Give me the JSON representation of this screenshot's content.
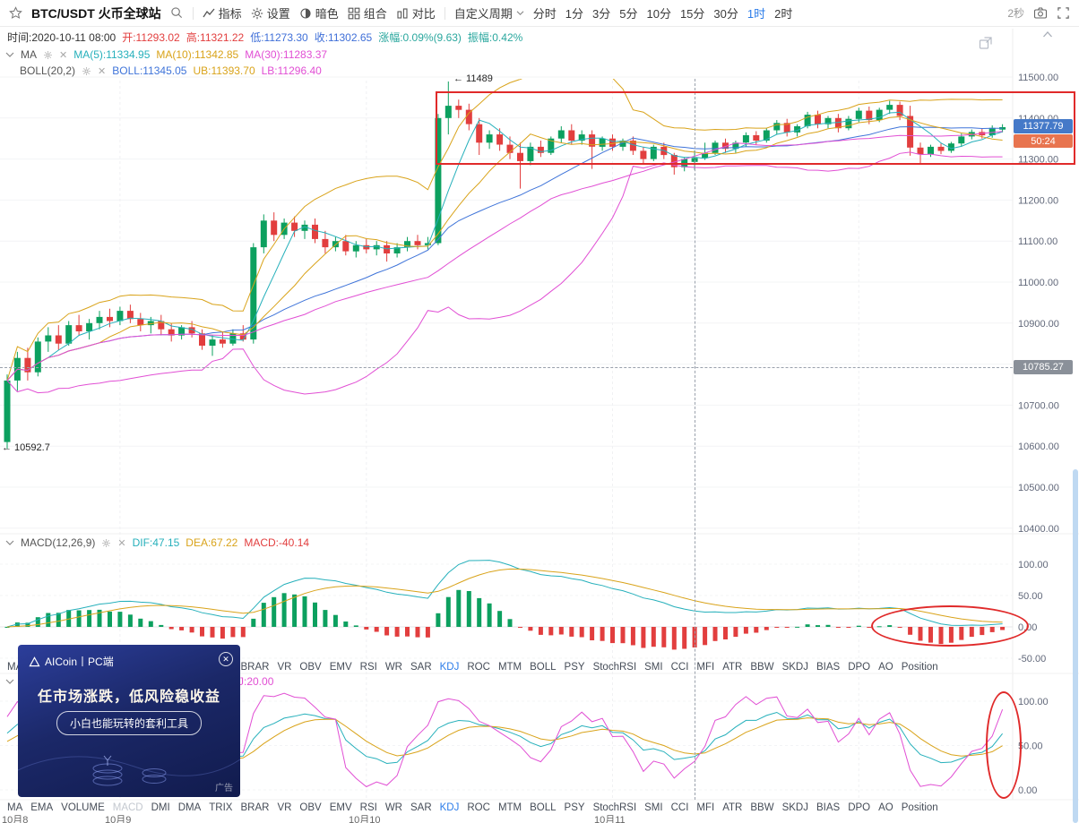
{
  "toolbar": {
    "symbol": "BTC/USDT 火币全球站",
    "menu": [
      "指标",
      "设置",
      "暗色",
      "组合",
      "对比"
    ],
    "custom_period_label": "自定义周期",
    "periods": [
      "分时",
      "1分",
      "3分",
      "5分",
      "10分",
      "15分",
      "30分",
      "1时",
      "2时"
    ],
    "active_period": "1时",
    "refresh_interval": "2秒"
  },
  "info_bar": {
    "time": "时间:2020-10-11 08:00",
    "open": "开:11293.02",
    "high": "高:11321.22",
    "low": "低:11273.30",
    "close": "收:11302.65",
    "change": "涨幅:0.09%(9.63)",
    "amplitude": "振幅:0.42%"
  },
  "indicator_rows": {
    "ma": {
      "label": "MA",
      "ma5": "MA(5):11334.95",
      "ma10": "MA(10):11342.85",
      "ma30": "MA(30):11283.37"
    },
    "boll": {
      "label": "BOLL(20,2)",
      "mid": "BOLL:11345.05",
      "ub": "UB:11393.70",
      "lb": "LB:11296.40"
    },
    "macd": {
      "label": "MACD(12,26,9)",
      "dif": "DIF:47.15",
      "dea": "DEA:67.22",
      "macd": "MACD:-40.14"
    },
    "kdj": {
      "label": "KDJ(9,3,3)",
      "j_value": "J:20.00"
    }
  },
  "annotations": {
    "high_marker": "← 11489",
    "low_marker": "← 10592.7",
    "last_price": "11377.79",
    "countdown": "50:24",
    "crosshair_price": "10785.27"
  },
  "tabs": {
    "items": [
      "MA",
      "EMA",
      "VOLUME",
      "MACD",
      "DMI",
      "DMA",
      "TRIX",
      "BRAR",
      "VR",
      "OBV",
      "EMV",
      "RSI",
      "WR",
      "SAR",
      "KDJ",
      "ROC",
      "MTM",
      "BOLL",
      "PSY",
      "StochRSI",
      "SMI",
      "CCI",
      "MFI",
      "ATR",
      "BBW",
      "SKDJ",
      "BIAS",
      "DPO",
      "AO",
      "Position"
    ],
    "active": "KDJ",
    "muted": "MACD"
  },
  "x_axis_labels": [
    "10月8",
    "10月9",
    "10月10",
    "10月11"
  ],
  "ad": {
    "brand": "AICoin丨PC端",
    "headline": "任市场涨跌，低风险稳收益",
    "button_label": "小白也能玩转的套利工具",
    "tag": "广告"
  },
  "colors": {
    "up": "#0CA05F",
    "down": "#E23E3E",
    "ma5": "#26B0BB",
    "ma10": "#D9A31A",
    "ma30": "#E14FD4",
    "boll_mid": "#3F74D9",
    "accent": "#2B7CE9",
    "badge_price_bg": "#4579C8",
    "badge_countdown_bg": "#E8744F",
    "badge_cross_bg": "#8A9099",
    "annotation_red": "#E02A2A"
  },
  "chart_data": {
    "type": "candlestick",
    "title": "BTC/USDT 1时 K线 (火币全球站)",
    "main_panel": {
      "y_ticks": [
        "11500.00",
        "11400.00",
        "11300.00",
        "11200.00",
        "11100.00",
        "11000.00",
        "10900.00",
        "10800.00",
        "10700.00",
        "10600.00",
        "10500.00",
        "10400.00"
      ],
      "overlays": [
        "MA5",
        "MA10",
        "MA30",
        "BOLL(20,2)"
      ],
      "candles_ohlc": [
        [
          10610,
          10775,
          10592.7,
          10760
        ],
        [
          10760,
          10830,
          10735,
          10815
        ],
        [
          10815,
          10840,
          10760,
          10780
        ],
        [
          10780,
          10865,
          10770,
          10855
        ],
        [
          10855,
          10890,
          10830,
          10870
        ],
        [
          10870,
          10895,
          10835,
          10850
        ],
        [
          10850,
          10905,
          10845,
          10895
        ],
        [
          10895,
          10920,
          10870,
          10880
        ],
        [
          10880,
          10910,
          10860,
          10900
        ],
        [
          10900,
          10930,
          10885,
          10915
        ],
        [
          10915,
          10935,
          10890,
          10905
        ],
        [
          10905,
          10940,
          10895,
          10930
        ],
        [
          10930,
          10945,
          10900,
          10910
        ],
        [
          10910,
          10925,
          10880,
          10895
        ],
        [
          10895,
          10915,
          10875,
          10905
        ],
        [
          10905,
          10920,
          10870,
          10885
        ],
        [
          10885,
          10900,
          10855,
          10870
        ],
        [
          10870,
          10895,
          10860,
          10890
        ],
        [
          10890,
          10905,
          10865,
          10875
        ],
        [
          10875,
          10885,
          10835,
          10845
        ],
        [
          10845,
          10870,
          10820,
          10860
        ],
        [
          10860,
          10880,
          10840,
          10850
        ],
        [
          10850,
          10885,
          10845,
          10875
        ],
        [
          10875,
          10895,
          10855,
          10860
        ],
        [
          10860,
          11095,
          10850,
          11085
        ],
        [
          11085,
          11165,
          11070,
          11150
        ],
        [
          11150,
          11170,
          11100,
          11115
        ],
        [
          11115,
          11155,
          11105,
          11145
        ],
        [
          11145,
          11160,
          11110,
          11125
        ],
        [
          11125,
          11150,
          11105,
          11140
        ],
        [
          11140,
          11155,
          11095,
          11105
        ],
        [
          11105,
          11125,
          11070,
          11085
        ],
        [
          11085,
          11110,
          11075,
          11100
        ],
        [
          11100,
          11115,
          11065,
          11075
        ],
        [
          11075,
          11100,
          11060,
          11090
        ],
        [
          11090,
          11105,
          11070,
          11080
        ],
        [
          11080,
          11100,
          11065,
          11090
        ],
        [
          11090,
          11100,
          11050,
          11070
        ],
        [
          11070,
          11095,
          11060,
          11085
        ],
        [
          11085,
          11110,
          11075,
          11100
        ],
        [
          11100,
          11115,
          11080,
          11090
        ],
        [
          11090,
          11110,
          11080,
          11095
        ],
        [
          11095,
          11410,
          11090,
          11400
        ],
        [
          11400,
          11489,
          11360,
          11430
        ],
        [
          11430,
          11445,
          11400,
          11420
        ],
        [
          11420,
          11435,
          11370,
          11385
        ],
        [
          11385,
          11400,
          11310,
          11340
        ],
        [
          11340,
          11370,
          11325,
          11360
        ],
        [
          11360,
          11375,
          11320,
          11335
        ],
        [
          11335,
          11355,
          11300,
          11315
        ],
        [
          11315,
          11340,
          11228,
          11295
        ],
        [
          11295,
          11340,
          11285,
          11330
        ],
        [
          11330,
          11345,
          11305,
          11315
        ],
        [
          11315,
          11355,
          11310,
          11350
        ],
        [
          11350,
          11380,
          11340,
          11370
        ],
        [
          11370,
          11385,
          11335,
          11345
        ],
        [
          11345,
          11370,
          11335,
          11360
        ],
        [
          11360,
          11370,
          11276,
          11330
        ],
        [
          11330,
          11355,
          11320,
          11350
        ],
        [
          11350,
          11360,
          11320,
          11330
        ],
        [
          11330,
          11350,
          11320,
          11345
        ],
        [
          11345,
          11355,
          11310,
          11320
        ],
        [
          11320,
          11330,
          11290,
          11300
        ],
        [
          11300,
          11335,
          11295,
          11330
        ],
        [
          11330,
          11340,
          11300,
          11310
        ],
        [
          11310,
          11315,
          11262,
          11280
        ],
        [
          11280,
          11305,
          11270,
          11300
        ],
        [
          11293,
          11321.2,
          11273.3,
          11302.7
        ],
        [
          11303,
          11340,
          11298,
          11315
        ],
        [
          11315,
          11345,
          11310,
          11340
        ],
        [
          11340,
          11350,
          11315,
          11325
        ],
        [
          11325,
          11345,
          11315,
          11340
        ],
        [
          11340,
          11365,
          11330,
          11358
        ],
        [
          11358,
          11368,
          11335,
          11345
        ],
        [
          11345,
          11375,
          11340,
          11370
        ],
        [
          11370,
          11395,
          11360,
          11388
        ],
        [
          11388,
          11398,
          11355,
          11365
        ],
        [
          11365,
          11385,
          11355,
          11380
        ],
        [
          11380,
          11415,
          11375,
          11408
        ],
        [
          11408,
          11418,
          11375,
          11385
        ],
        [
          11385,
          11405,
          11375,
          11400
        ],
        [
          11400,
          11410,
          11365,
          11375
        ],
        [
          11375,
          11405,
          11370,
          11398
        ],
        [
          11398,
          11425,
          11390,
          11418
        ],
        [
          11418,
          11428,
          11385,
          11395
        ],
        [
          11395,
          11425,
          11390,
          11420
        ],
        [
          11420,
          11442,
          11410,
          11432
        ],
        [
          11432,
          11440,
          11395,
          11405
        ],
        [
          11405,
          11430,
          11308,
          11328
        ],
        [
          11328,
          11340,
          11288,
          11312
        ],
        [
          11312,
          11335,
          11305,
          11330
        ],
        [
          11330,
          11338,
          11312,
          11320
        ],
        [
          11320,
          11342,
          11315,
          11338
        ],
        [
          11338,
          11362,
          11330,
          11355
        ],
        [
          11355,
          11372,
          11348,
          11366
        ],
        [
          11366,
          11374,
          11350,
          11358
        ],
        [
          11358,
          11382,
          11352,
          11376
        ],
        [
          11372,
          11385,
          11365,
          11377.79
        ]
      ]
    },
    "macd_panel": {
      "label": "MACD(12,26,9)",
      "y_ticks": [
        "100.00",
        "50.00",
        "0.00",
        "-50.00"
      ],
      "dif": 47.15,
      "dea": 67.22,
      "macd": -40.14
    },
    "kdj_panel": {
      "label": "KDJ(9,3,3)",
      "y_ticks": [
        "100.00",
        "50.00",
        "0.00"
      ],
      "j": 20.0
    }
  }
}
